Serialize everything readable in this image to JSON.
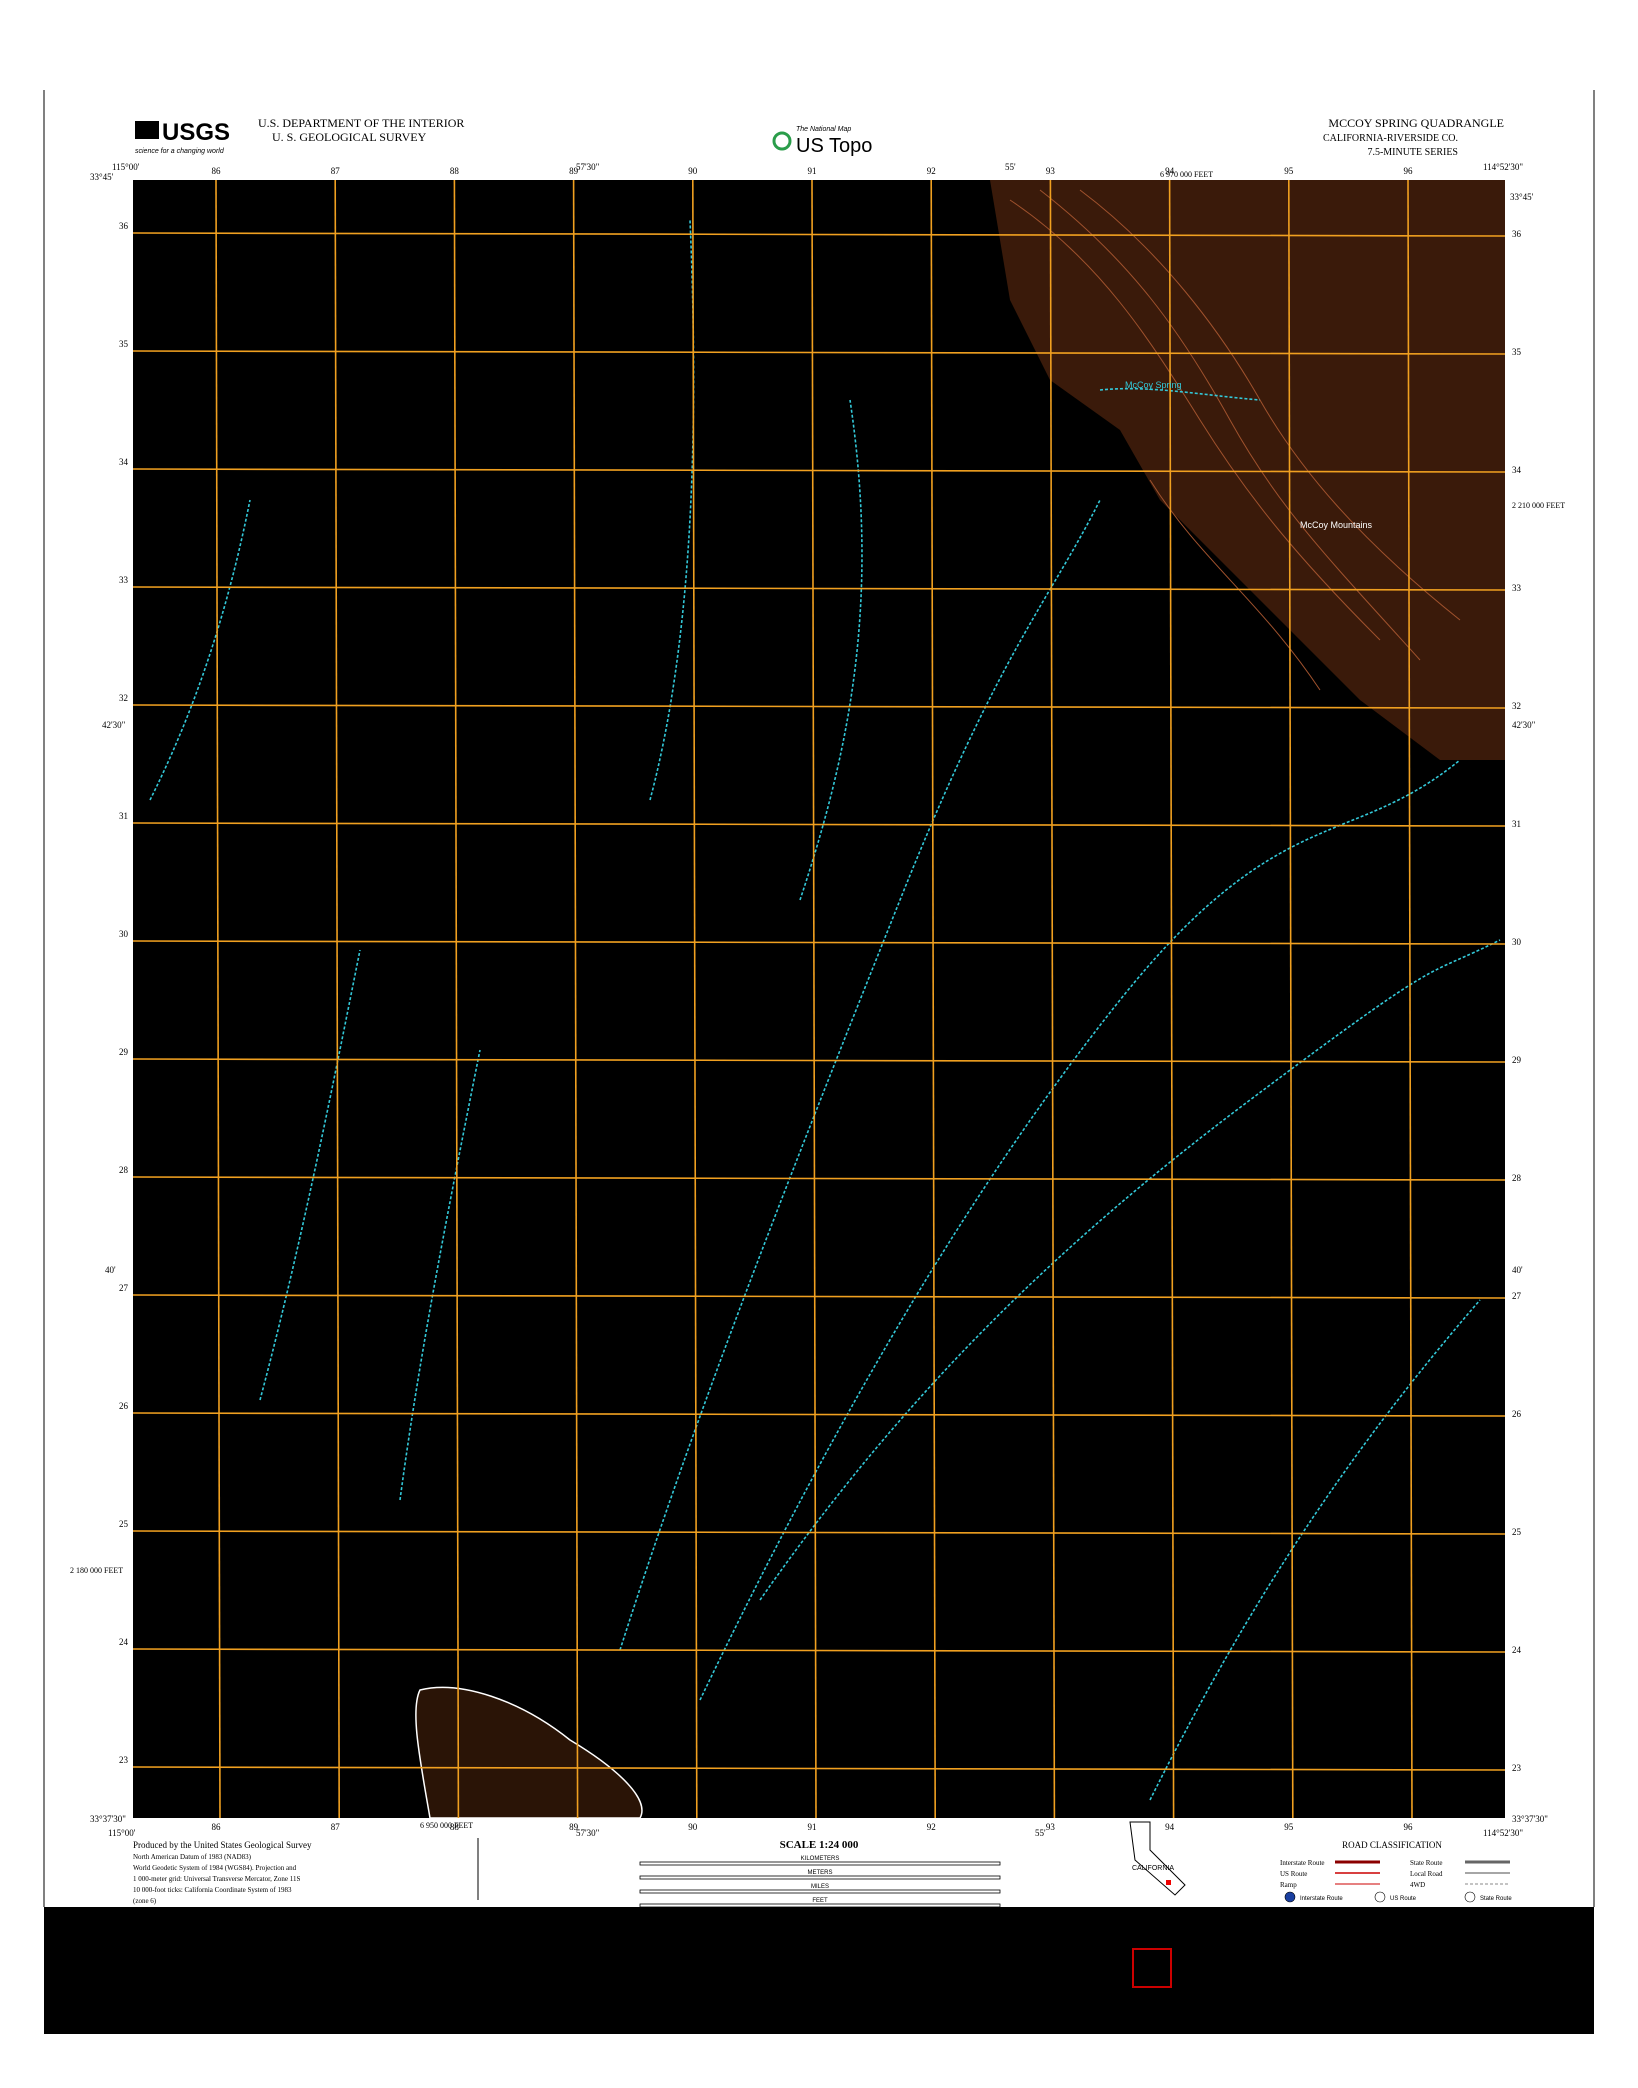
{
  "header": {
    "agency": "U.S. DEPARTMENT OF THE INTERIOR",
    "survey": "U. S. GEOLOGICAL SURVEY",
    "logo": "USGS",
    "logo_tag": "science for a changing world",
    "product_tag": "The National Map",
    "product": "US Topo",
    "quadrangle": "MCCOY SPRING QUADRANGLE",
    "location": "CALIFORNIA-RIVERSIDE CO.",
    "series": "7.5-MINUTE SERIES"
  },
  "map": {
    "eastings": [
      "86",
      "87",
      "88",
      "89",
      "90",
      "91",
      "92",
      "93",
      "94",
      "95",
      "96"
    ],
    "northings": [
      "36",
      "35",
      "34",
      "33",
      "32",
      "31",
      "30",
      "29",
      "28",
      "27",
      "26",
      "25",
      "24",
      "23"
    ],
    "corners": {
      "top_left_lat": "33°45'",
      "top_left_lon": "115°00'",
      "top_right_lat": "33°45'",
      "top_right_lon": "114°52'30\"",
      "bottom_left_lat": "33°37'30\"",
      "bottom_left_lon": "115°00'",
      "bottom_right_lat": "33°37'30\"",
      "bottom_right_lon": "114°52'30\""
    },
    "mid_lon_1": "57'30\"",
    "mid_lon_2": "55'",
    "mid_lat_1": "42'30\"",
    "mid_lat_2": "40'",
    "feet_top": "6 970 000 FEET",
    "feet_right": "2 210 000 FEET",
    "feet_left": "2 180 000 FEET",
    "feet_bottom": "6 950 000 FEET",
    "features": [
      "McCoy Mountains",
      "McCoy Spring"
    ]
  },
  "footer": {
    "producer": [
      "Produced by the United States Geological Survey",
      "North American Datum of 1983 (NAD83)",
      "World Geodetic System of 1984 (WGS84). Projection and",
      "1 000-meter grid: Universal Transverse Mercator, Zone 11S",
      "10 000-foot ticks: California Coordinate System of 1983",
      "(zone 6)"
    ],
    "scale": "SCALE 1:24 000",
    "scale_units": [
      "KILOMETERS",
      "METERS",
      "MILES",
      "FEET"
    ],
    "state": "CALIFORNIA",
    "road_title": "ROAD CLASSIFICATION",
    "roads": [
      "Interstate Route",
      "US Route",
      "Ramp",
      "State Route",
      "Local Road",
      "4WD"
    ],
    "shields": [
      "Interstate Route",
      "US Route",
      "State Route"
    ]
  }
}
